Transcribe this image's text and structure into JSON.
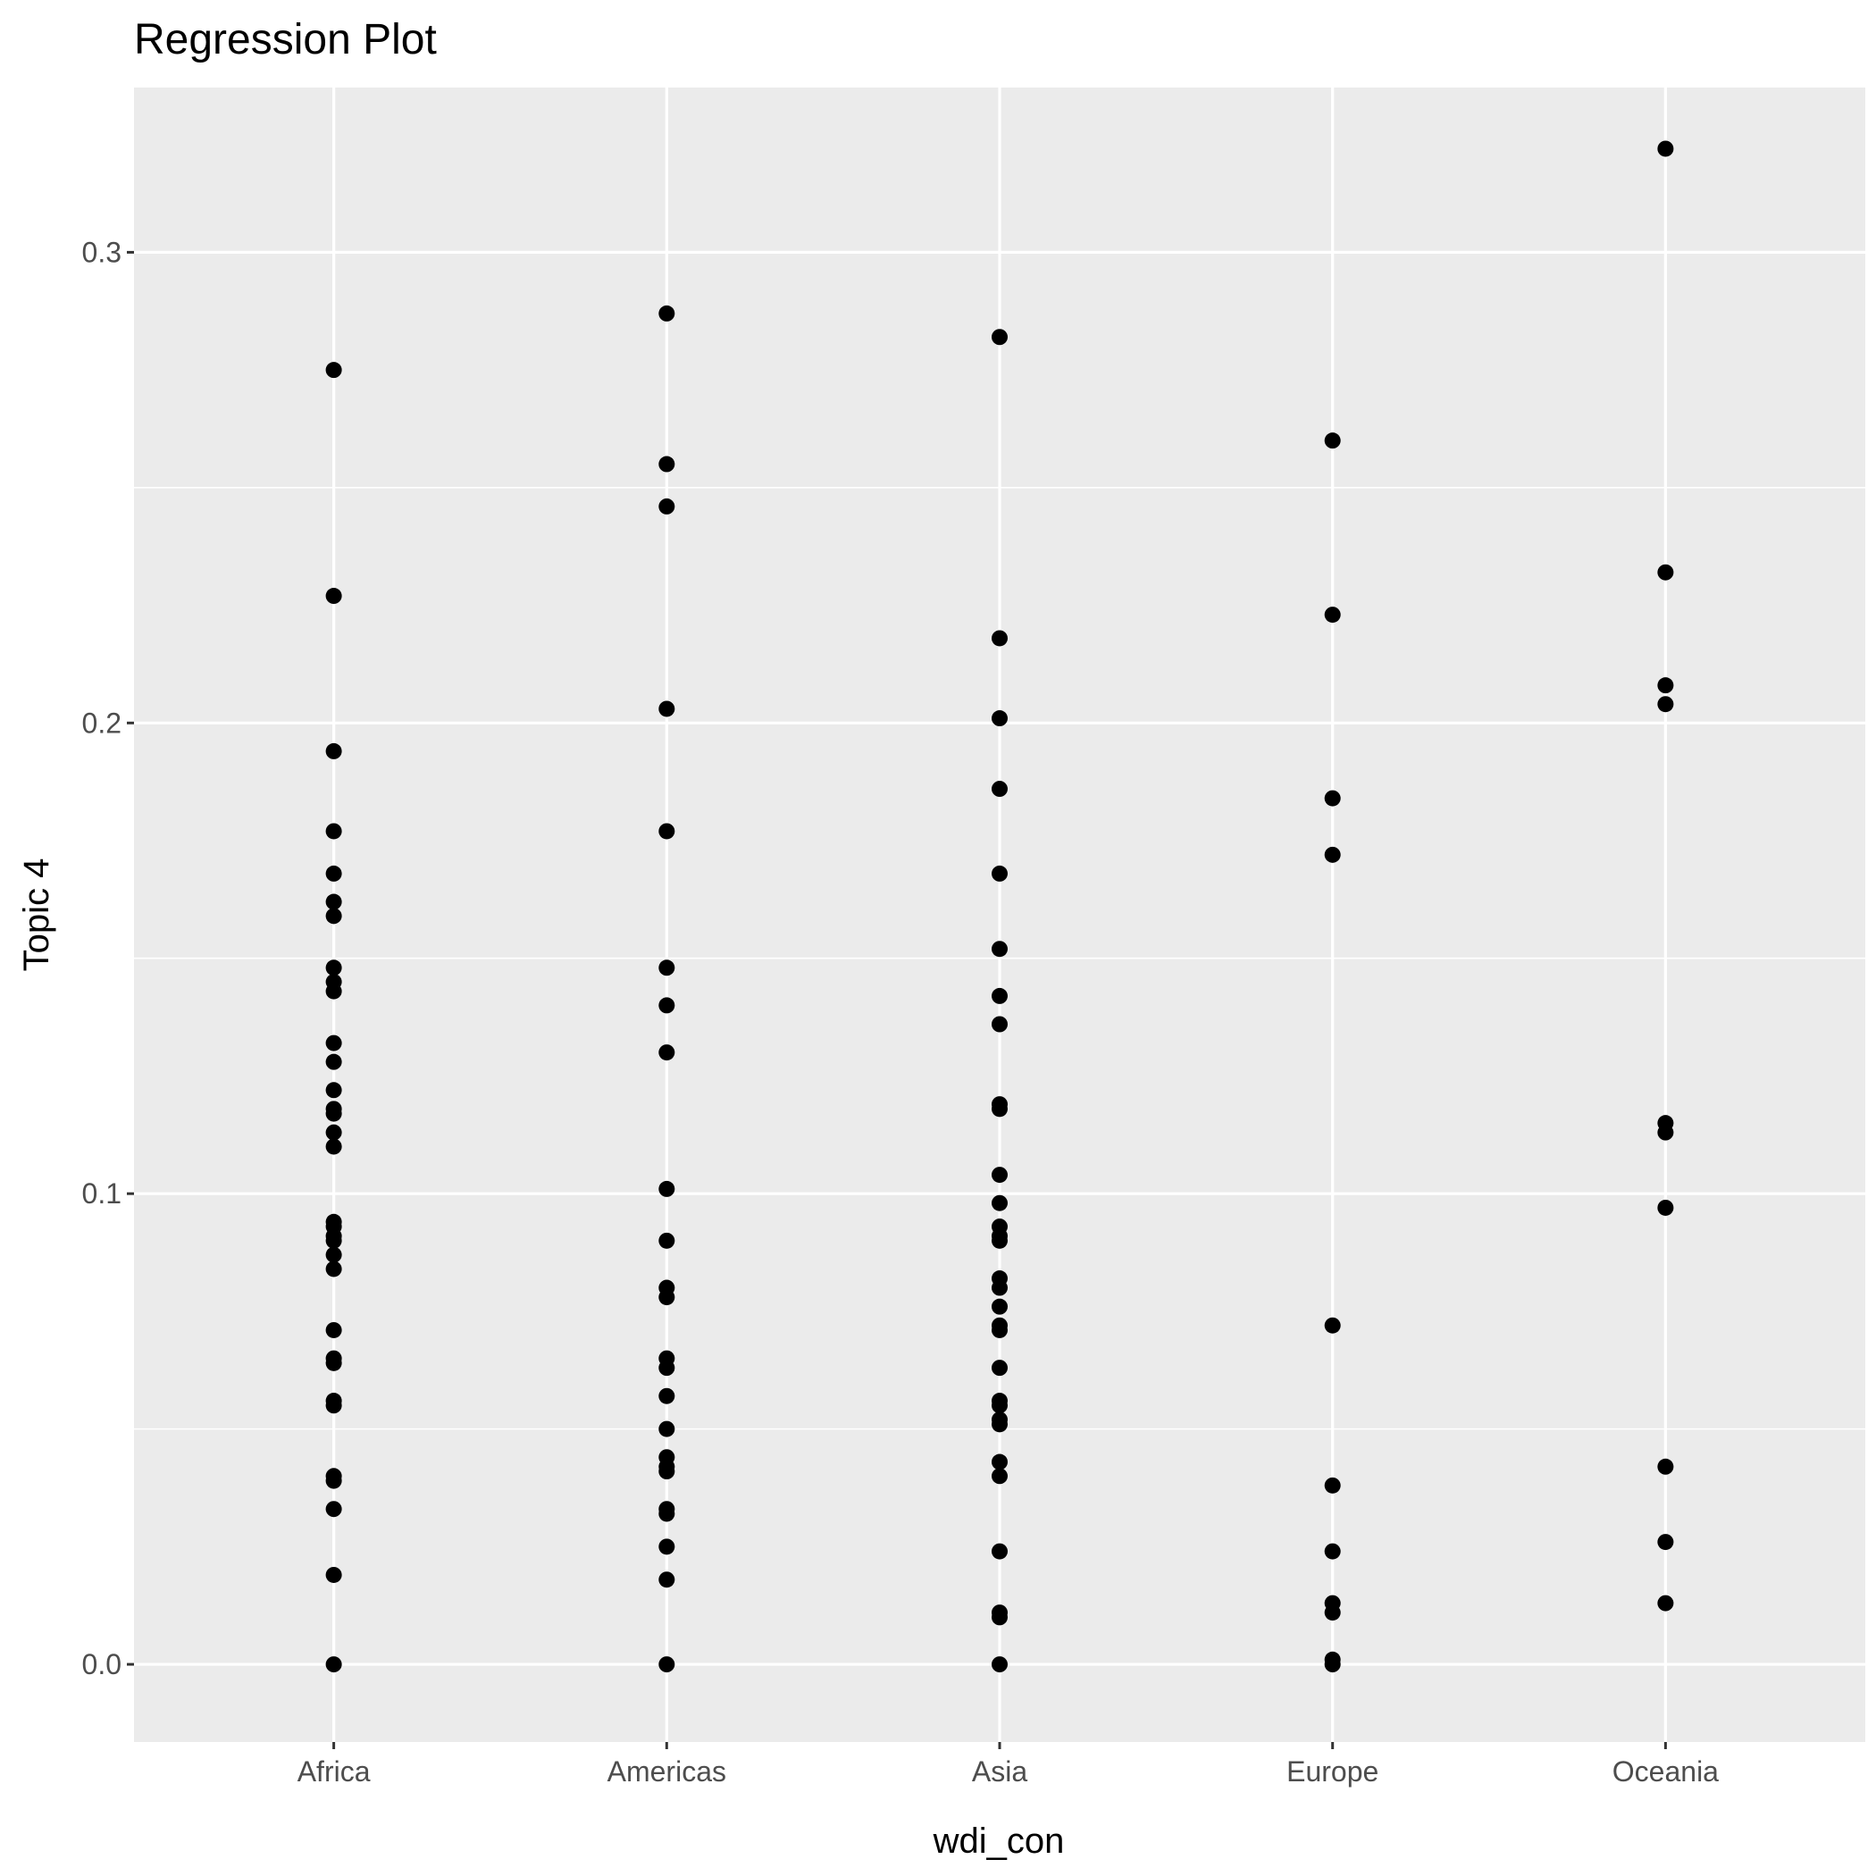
{
  "chart_data": {
    "type": "scatter",
    "title": "Regression Plot",
    "xlabel": "wdi_con",
    "ylabel": "Topic 4",
    "categories": [
      "Africa",
      "Americas",
      "Asia",
      "Europe",
      "Oceania"
    ],
    "yticks": [
      0.0,
      0.1,
      0.2,
      0.3
    ],
    "ytick_labels": [
      "0.0",
      "0.1",
      "0.2",
      "0.3"
    ],
    "ylim": [
      -0.0165,
      0.335
    ],
    "grid": true,
    "colors": {
      "panel": "#ebebeb",
      "grid": "#ffffff",
      "point": "#000000",
      "tick": "#333333"
    },
    "series": [
      {
        "category": "Africa",
        "values": [
          0.275,
          0.227,
          0.194,
          0.177,
          0.168,
          0.162,
          0.159,
          0.148,
          0.145,
          0.143,
          0.132,
          0.128,
          0.122,
          0.118,
          0.117,
          0.113,
          0.11,
          0.094,
          0.093,
          0.091,
          0.09,
          0.087,
          0.084,
          0.071,
          0.065,
          0.064,
          0.056,
          0.055,
          0.04,
          0.039,
          0.033,
          0.019,
          0.0
        ]
      },
      {
        "category": "Americas",
        "values": [
          0.287,
          0.255,
          0.246,
          0.203,
          0.177,
          0.148,
          0.14,
          0.13,
          0.101,
          0.09,
          0.08,
          0.078,
          0.065,
          0.063,
          0.057,
          0.05,
          0.044,
          0.042,
          0.041,
          0.033,
          0.032,
          0.025,
          0.018,
          0.0
        ]
      },
      {
        "category": "Asia",
        "values": [
          0.282,
          0.218,
          0.201,
          0.186,
          0.168,
          0.152,
          0.142,
          0.136,
          0.119,
          0.118,
          0.104,
          0.098,
          0.093,
          0.091,
          0.09,
          0.082,
          0.08,
          0.076,
          0.072,
          0.071,
          0.063,
          0.056,
          0.055,
          0.052,
          0.051,
          0.043,
          0.04,
          0.024,
          0.011,
          0.01,
          0.0
        ]
      },
      {
        "category": "Europe",
        "values": [
          0.26,
          0.223,
          0.184,
          0.172,
          0.072,
          0.038,
          0.024,
          0.013,
          0.011,
          0.001,
          0.0
        ]
      },
      {
        "category": "Oceania",
        "values": [
          0.322,
          0.232,
          0.208,
          0.204,
          0.115,
          0.113,
          0.097,
          0.042,
          0.026,
          0.013
        ]
      }
    ]
  }
}
